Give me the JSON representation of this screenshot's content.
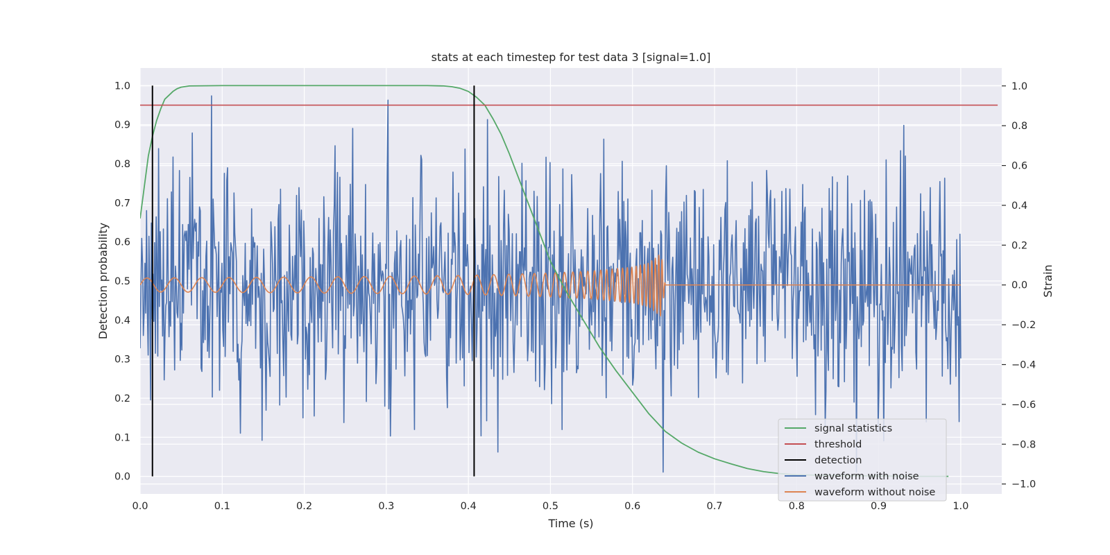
{
  "chart_data": {
    "type": "line",
    "title": "stats at each timestep for test data 3 [signal=1.0]",
    "xlabel": "Time (s)",
    "ylabel": "Detection probability",
    "ylabel_right": "Strain",
    "xlim": [
      0.0,
      1.05
    ],
    "ylim": [
      -0.045,
      1.045
    ],
    "ylim_right": [
      -1.05,
      1.09
    ],
    "x_ticks": [
      "0.0",
      "0.1",
      "0.2",
      "0.3",
      "0.4",
      "0.5",
      "0.6",
      "0.7",
      "0.8",
      "0.9",
      "1.0"
    ],
    "y_ticks": [
      "0.0",
      "0.1",
      "0.2",
      "0.3",
      "0.4",
      "0.5",
      "0.6",
      "0.7",
      "0.8",
      "0.9",
      "1.0"
    ],
    "y_ticks_right": [
      "−1.0",
      "−0.8",
      "−0.6",
      "−0.4",
      "−0.2",
      "0.0",
      "0.2",
      "0.4",
      "0.6",
      "0.8",
      "1.0"
    ],
    "grid": true,
    "legend_position": "lower-right",
    "series": [
      {
        "name": "signal statistics",
        "axis": "left",
        "color": "#55a868",
        "x": [
          0.0,
          0.005,
          0.01,
          0.015,
          0.02,
          0.025,
          0.03,
          0.04,
          0.045,
          0.05,
          0.06,
          0.1,
          0.2,
          0.3,
          0.35,
          0.37,
          0.38,
          0.39,
          0.4,
          0.41,
          0.42,
          0.43,
          0.44,
          0.45,
          0.46,
          0.47,
          0.48,
          0.49,
          0.5,
          0.52,
          0.54,
          0.56,
          0.58,
          0.6,
          0.62,
          0.64,
          0.66,
          0.68,
          0.7,
          0.72,
          0.74,
          0.76,
          0.78,
          0.8,
          0.85,
          0.9,
          0.95,
          0.985
        ],
        "y": [
          0.66,
          0.74,
          0.82,
          0.87,
          0.91,
          0.94,
          0.965,
          0.985,
          0.992,
          0.996,
          0.999,
          1.0,
          1.0,
          1.0,
          1.0,
          0.999,
          0.997,
          0.993,
          0.985,
          0.97,
          0.95,
          0.915,
          0.875,
          0.825,
          0.77,
          0.715,
          0.66,
          0.605,
          0.55,
          0.47,
          0.4,
          0.33,
          0.27,
          0.215,
          0.16,
          0.115,
          0.085,
          0.062,
          0.045,
          0.032,
          0.02,
          0.012,
          0.007,
          0.004,
          0.002,
          0.001,
          0.0,
          0.0
        ]
      },
      {
        "name": "threshold",
        "axis": "left",
        "color": "#c44e52",
        "x": [
          0.0,
          1.045
        ],
        "y": [
          0.95,
          0.95
        ]
      },
      {
        "name": "detection",
        "axis": "left",
        "color": "#000000",
        "lines": [
          {
            "x": 0.015,
            "y_range": [
              0.0,
              1.0
            ]
          },
          {
            "x": 0.407,
            "y_range": [
              0.0,
              1.0
            ]
          }
        ]
      },
      {
        "name": "waveform with noise",
        "axis": "right",
        "color": "#4c72b0",
        "x_range": [
          0.0,
          1.0
        ],
        "n_points": 1024,
        "amplitude_sd": 0.3,
        "observed_min": -0.94,
        "observed_max": 0.95
      },
      {
        "name": "waveform without noise",
        "axis": "right",
        "color": "#dd8452",
        "x": [
          0.0,
          0.1,
          0.2,
          0.3,
          0.4,
          0.5,
          0.55,
          0.6,
          0.62,
          0.635,
          0.64,
          0.65,
          0.8,
          1.0
        ],
        "envelope": [
          0.035,
          0.037,
          0.04,
          0.043,
          0.048,
          0.06,
          0.07,
          0.09,
          0.11,
          0.16,
          0.0,
          0.0,
          0.0,
          0.0
        ],
        "frequency_hz_start": 30,
        "frequency_hz_end": 260,
        "merger_time": 0.64
      }
    ]
  }
}
